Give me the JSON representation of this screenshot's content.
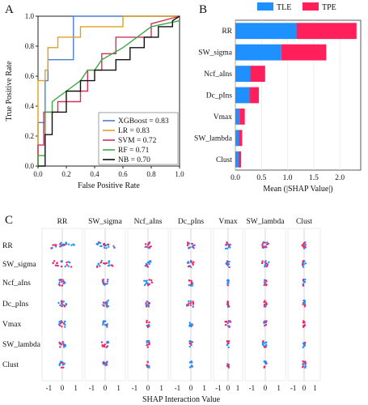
{
  "panels": {
    "a": "A",
    "b": "B",
    "c": "C"
  },
  "colors": {
    "tle": "#1e90ff",
    "tpe": "#ff1f5b",
    "xgboost": "#4a7fd4",
    "lr": "#e0a020",
    "svm": "#d4305a",
    "rf": "#3aa845",
    "nb": "#111111",
    "grid": "#e6e6e6"
  },
  "chart_data": [
    {
      "type": "line",
      "xlabel": "False Positive Rate",
      "ylabel": "True Positive Rate",
      "xlim": [
        0,
        1
      ],
      "ylim": [
        0,
        1
      ],
      "xticks": [
        "0.0",
        "0.2",
        "0.4",
        "0.6",
        "0.8",
        "1.0"
      ],
      "yticks": [
        "0.0",
        "0.2",
        "0.4",
        "0.6",
        "0.8",
        "1.0"
      ],
      "legend_position": "bottom-right",
      "series": [
        {
          "name": "XGBoost = 0.83",
          "color": "#4a7fd4",
          "points": [
            [
              0,
              0
            ],
            [
              0,
              0.29
            ],
            [
              0.05,
              0.29
            ],
            [
              0.05,
              0.57
            ],
            [
              0.07,
              0.57
            ],
            [
              0.07,
              0.71
            ],
            [
              0.25,
              0.71
            ],
            [
              0.25,
              1.0
            ],
            [
              1,
              1
            ]
          ]
        },
        {
          "name": "LR = 0.83",
          "color": "#e0a020",
          "points": [
            [
              0,
              0
            ],
            [
              0,
              0.57
            ],
            [
              0.05,
              0.57
            ],
            [
              0.05,
              0.64
            ],
            [
              0.07,
              0.64
            ],
            [
              0.07,
              0.79
            ],
            [
              0.14,
              0.79
            ],
            [
              0.14,
              0.86
            ],
            [
              0.3,
              0.86
            ],
            [
              0.3,
              0.93
            ],
            [
              0.6,
              0.93
            ],
            [
              0.6,
              1.0
            ],
            [
              1,
              1
            ]
          ]
        },
        {
          "name": "SVM = 0.72",
          "color": "#d4305a",
          "points": [
            [
              0,
              0
            ],
            [
              0,
              0.14
            ],
            [
              0.04,
              0.14
            ],
            [
              0.04,
              0.36
            ],
            [
              0.14,
              0.36
            ],
            [
              0.14,
              0.43
            ],
            [
              0.3,
              0.43
            ],
            [
              0.3,
              0.5
            ],
            [
              0.35,
              0.5
            ],
            [
              0.35,
              0.64
            ],
            [
              0.45,
              0.64
            ],
            [
              0.45,
              0.75
            ],
            [
              0.55,
              0.75
            ],
            [
              0.55,
              0.86
            ],
            [
              0.8,
              0.86
            ],
            [
              0.8,
              0.95
            ],
            [
              1,
              1
            ]
          ]
        },
        {
          "name": "RF = 0.71",
          "color": "#3aa845",
          "points": [
            [
              0,
              0
            ],
            [
              0,
              0.07
            ],
            [
              0.05,
              0.07
            ],
            [
              0.05,
              0.36
            ],
            [
              0.1,
              0.36
            ],
            [
              0.1,
              0.43
            ],
            [
              0.2,
              0.5
            ],
            [
              0.3,
              0.57
            ],
            [
              0.35,
              0.64
            ],
            [
              0.4,
              0.64
            ],
            [
              0.45,
              0.71
            ],
            [
              0.6,
              0.79
            ],
            [
              0.7,
              0.86
            ],
            [
              0.8,
              0.93
            ],
            [
              1,
              0.97
            ]
          ]
        },
        {
          "name": "NB = 0.70",
          "color": "#111111",
          "points": [
            [
              0,
              0
            ],
            [
              0.05,
              0
            ],
            [
              0.05,
              0.21
            ],
            [
              0.1,
              0.21
            ],
            [
              0.1,
              0.36
            ],
            [
              0.2,
              0.36
            ],
            [
              0.2,
              0.5
            ],
            [
              0.3,
              0.5
            ],
            [
              0.3,
              0.57
            ],
            [
              0.4,
              0.57
            ],
            [
              0.4,
              0.64
            ],
            [
              0.55,
              0.64
            ],
            [
              0.55,
              0.71
            ],
            [
              0.65,
              0.71
            ],
            [
              0.65,
              0.79
            ],
            [
              0.75,
              0.79
            ],
            [
              0.75,
              0.86
            ],
            [
              0.85,
              0.86
            ],
            [
              0.85,
              0.93
            ],
            [
              0.95,
              0.93
            ],
            [
              0.95,
              0.97
            ],
            [
              1,
              1
            ]
          ]
        }
      ]
    },
    {
      "type": "bar",
      "orientation": "horizontal",
      "stacked": true,
      "xlabel": "Mean (|SHAP Value|)",
      "xlim": [
        0,
        2.4
      ],
      "xticks": [
        "0.0",
        "0.5",
        "1.0",
        "1.5",
        "2.0"
      ],
      "legend_position": "top",
      "categories": [
        "RR",
        "SW_sigma",
        "Ncf_aIns",
        "Dc_pIns",
        "Vmax",
        "SW_lambda",
        "Clust"
      ],
      "series": [
        {
          "name": "TLE",
          "color": "#1e90ff",
          "values": [
            1.17,
            0.88,
            0.28,
            0.27,
            0.08,
            0.07,
            0.06
          ]
        },
        {
          "name": "TPE",
          "color": "#ff1f5b",
          "values": [
            1.15,
            0.86,
            0.29,
            0.18,
            0.1,
            0.06,
            0.05
          ]
        }
      ]
    },
    {
      "type": "scatter",
      "xlabel": "SHAP Interaction Value",
      "features": [
        "RR",
        "SW_sigma",
        "Ncf_aIns",
        "Dc_pIns",
        "Vmax",
        "SW_lambda",
        "Clust"
      ],
      "xticks": [
        "-1",
        "0",
        "1"
      ],
      "color_scale": [
        "#1e90ff",
        "#ff1f5b"
      ],
      "note": "Matrix of SHAP interaction beeswarms; rows and columns are features. Values approximate.",
      "spread": [
        [
          0.9,
          0.7,
          0.25,
          0.3,
          0.25,
          0.25,
          0.2
        ],
        [
          0.7,
          0.6,
          0.2,
          0.25,
          0.2,
          0.25,
          0.15
        ],
        [
          0.25,
          0.2,
          0.3,
          0.15,
          0.1,
          0.1,
          0.1
        ],
        [
          0.3,
          0.25,
          0.15,
          0.3,
          0.1,
          0.1,
          0.1
        ],
        [
          0.25,
          0.2,
          0.1,
          0.1,
          0.3,
          0.1,
          0.1
        ],
        [
          0.25,
          0.25,
          0.1,
          0.1,
          0.1,
          0.2,
          0.1
        ],
        [
          0.2,
          0.15,
          0.1,
          0.1,
          0.1,
          0.1,
          0.15
        ]
      ]
    }
  ]
}
